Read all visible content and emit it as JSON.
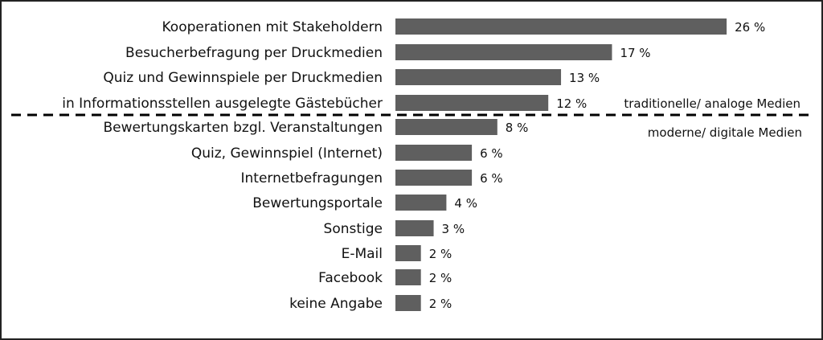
{
  "chart_data": {
    "type": "bar",
    "orientation": "horizontal",
    "categories": [
      "Kooperationen mit Stakeholdern",
      "Besucherbefragung per Druckmedien",
      "Quiz und Gewinnspiele per Druckmedien",
      "in Informationsstellen ausgelegte Gästebücher",
      "Bewertungskarten bzgl. Veranstaltungen",
      "Quiz, Gewinnspiel (Internet)",
      "Internetbefragungen",
      "Bewertungsportale",
      "Sonstige",
      "E-Mail",
      "Facebook",
      "keine Angabe"
    ],
    "values": [
      26,
      17,
      13,
      12,
      8,
      6,
      6,
      4,
      3,
      2,
      2,
      2
    ],
    "value_labels": [
      "26 %",
      "17 %",
      "13 %",
      "12 %",
      "8 %",
      "6 %",
      "6 %",
      "4 %",
      "3 %",
      "2 %",
      "2 %",
      "2 %"
    ],
    "bar_color": "#5f5f5f",
    "groups": [
      {
        "label": "traditionelle/ analoge Medien",
        "count": 4
      },
      {
        "label": "moderne/ digitale Medien",
        "count": 8
      }
    ],
    "divider": "dashed line between groups",
    "title": "",
    "xlabel": "",
    "ylabel": "",
    "grid": false,
    "legend": "none"
  }
}
